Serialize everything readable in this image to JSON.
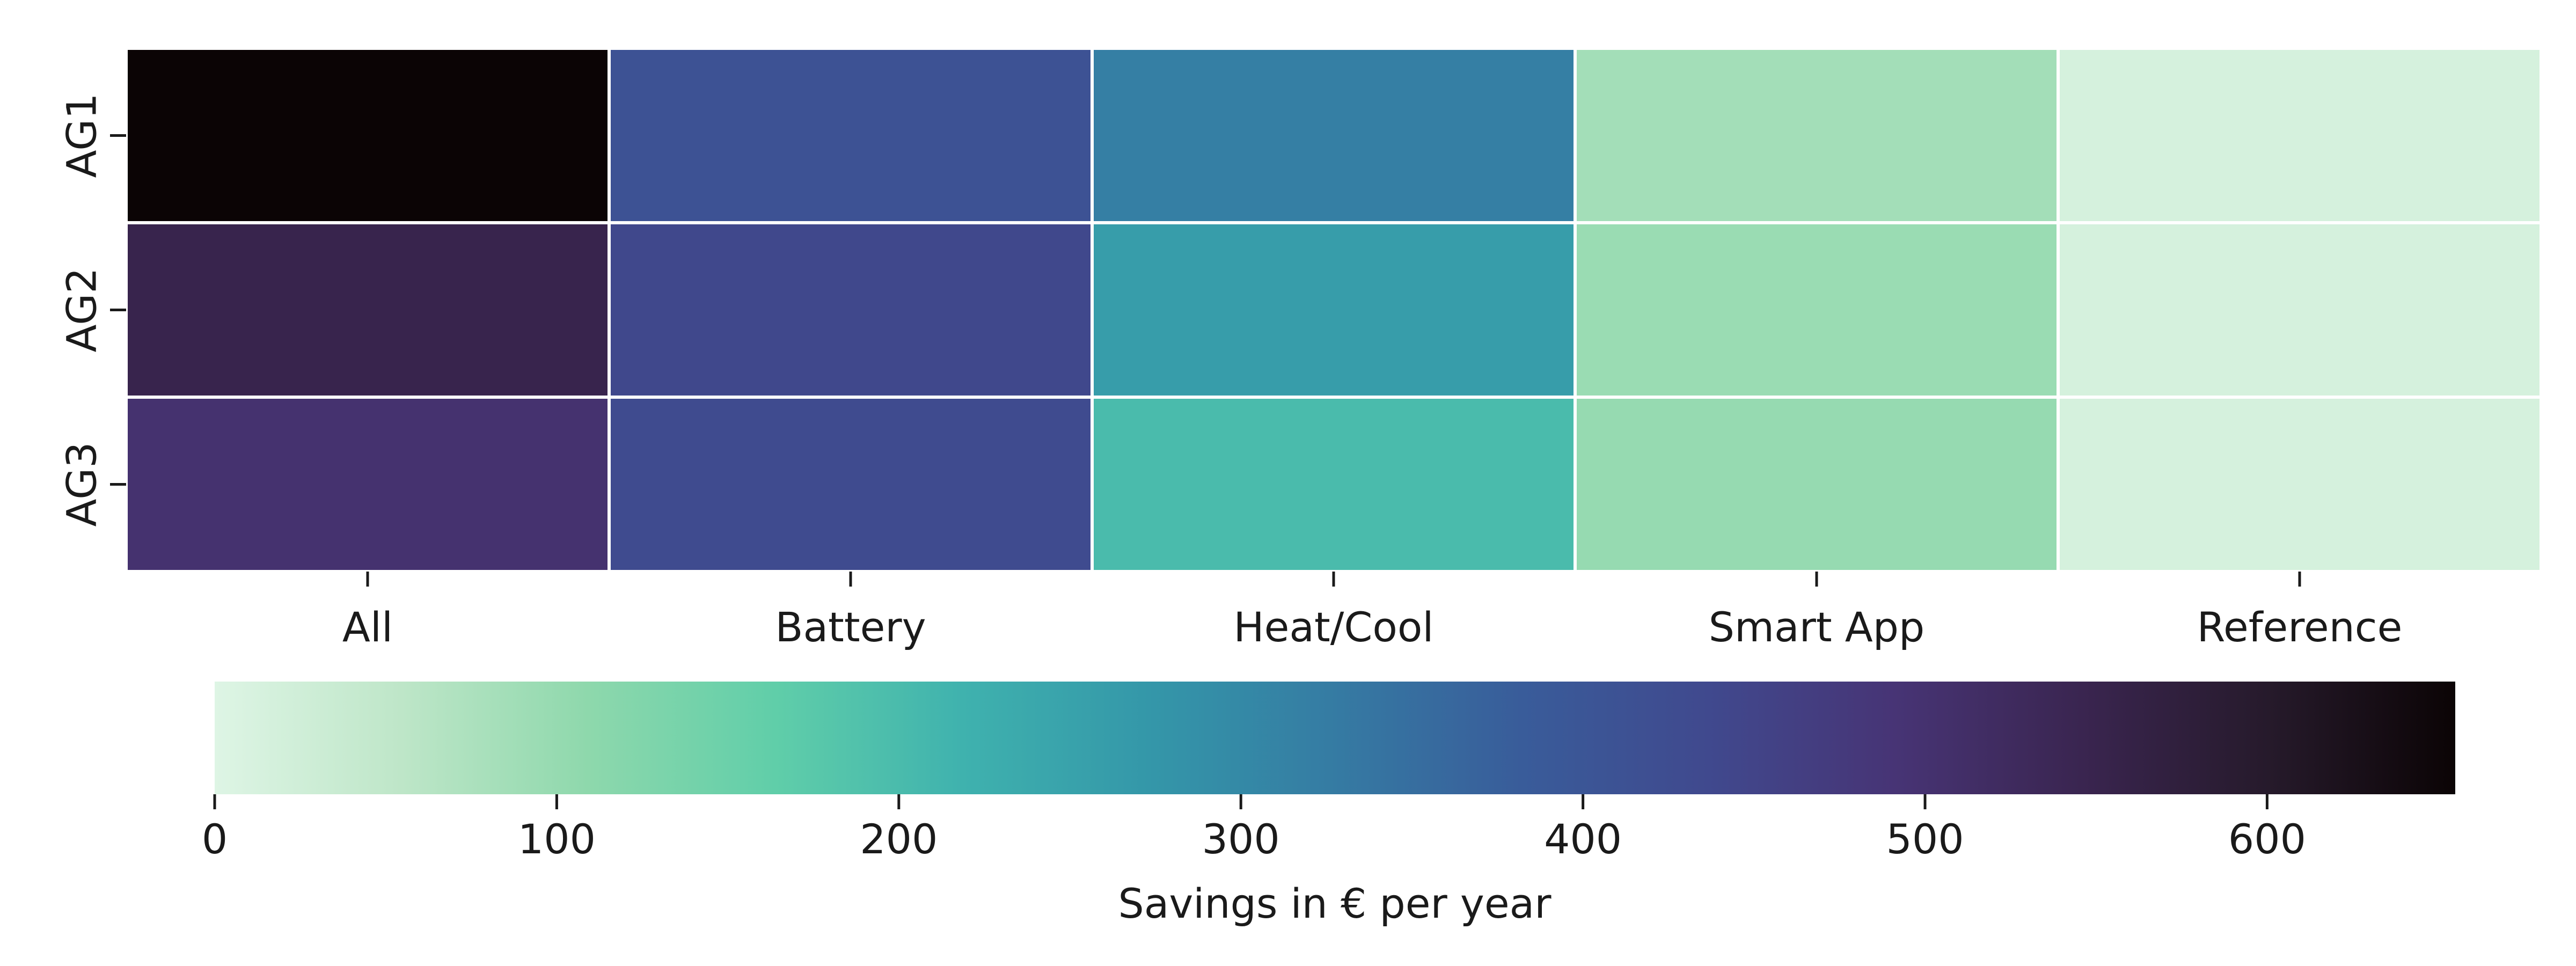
{
  "chart_data": {
    "type": "heatmap",
    "rows": [
      "AG1",
      "AG2",
      "AG3"
    ],
    "columns": [
      "All",
      "Battery",
      "Heat/Cool",
      "Smart App",
      "Reference"
    ],
    "values": [
      [
        655,
        410,
        320,
        85,
        15
      ],
      [
        550,
        440,
        260,
        95,
        15
      ],
      [
        500,
        430,
        200,
        100,
        15
      ]
    ],
    "colorbar": {
      "label": "Savings in € per year",
      "vmin": 0,
      "vmax": 655,
      "ticks": [
        0,
        100,
        200,
        300,
        400,
        500,
        600
      ],
      "orientation": "horizontal"
    },
    "colormap": [
      "#def5e5",
      "#bee6c8",
      "#8ed8ac",
      "#60cea9",
      "#3fb2ae",
      "#3497a9",
      "#357ba3",
      "#395c9a",
      "#40498e",
      "#473475",
      "#3a2550",
      "#261a2b",
      "#0b0405"
    ]
  }
}
